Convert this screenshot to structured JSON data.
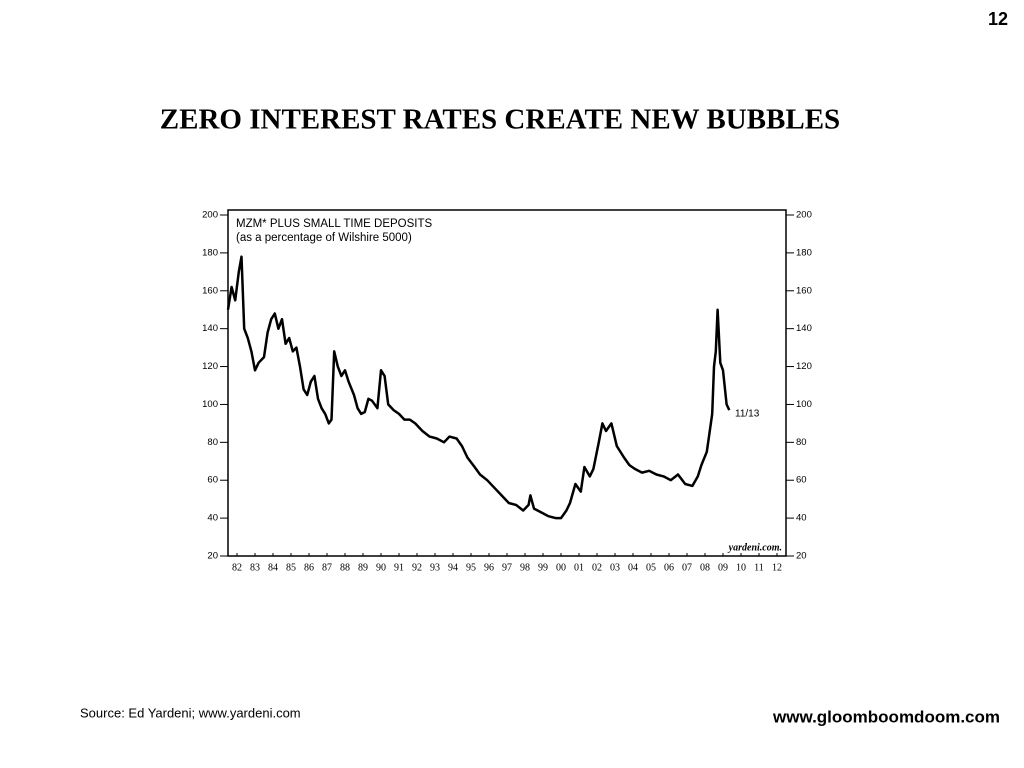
{
  "slide_number": "12",
  "title": "ZERO  INTEREST  RATES  CREATE  NEW  BUBBLES",
  "source": "Source: Ed Yardeni; www.yardeni.com",
  "website": "www.gloomboomdoom.com",
  "chart_data": {
    "type": "line",
    "title": "MZM* PLUS SMALL TIME DEPOSITS",
    "subtitle": "(as a percentage of Wilshire 5000)",
    "annotations": [
      "11/13",
      "yardeni.com."
    ],
    "color": "#000000",
    "x": [
      1982.0,
      1982.2,
      1982.4,
      1982.6,
      1982.75,
      1982.9,
      1983.1,
      1983.3,
      1983.5,
      1983.7,
      1984.0,
      1984.2,
      1984.4,
      1984.6,
      1984.8,
      1985.0,
      1985.2,
      1985.4,
      1985.6,
      1985.8,
      1986.0,
      1986.2,
      1986.4,
      1986.6,
      1986.8,
      1987.0,
      1987.2,
      1987.4,
      1987.6,
      1987.75,
      1987.9,
      1988.1,
      1988.3,
      1988.5,
      1988.7,
      1989.0,
      1989.2,
      1989.4,
      1989.6,
      1989.8,
      1990.0,
      1990.3,
      1990.5,
      1990.7,
      1990.9,
      1991.2,
      1991.5,
      1991.8,
      1992.1,
      1992.4,
      1992.8,
      1993.2,
      1993.6,
      1994.0,
      1994.3,
      1994.7,
      1995.0,
      1995.3,
      1995.7,
      1996.0,
      1996.4,
      1996.8,
      1997.2,
      1997.6,
      1998.0,
      1998.4,
      1998.7,
      1998.8,
      1999.0,
      1999.4,
      1999.8,
      2000.2,
      2000.5,
      2000.8,
      2001.0,
      2001.3,
      2001.6,
      2001.8,
      2002.1,
      2002.3,
      2002.6,
      2002.8,
      2003.0,
      2003.3,
      2003.6,
      2004.0,
      2004.3,
      2004.6,
      2005.0,
      2005.4,
      2005.8,
      2006.2,
      2006.6,
      2007.0,
      2007.4,
      2007.8,
      2008.1,
      2008.3,
      2008.6,
      2008.9,
      2009.0,
      2009.1,
      2009.2,
      2009.35,
      2009.5,
      2009.7,
      2009.85
    ],
    "values": [
      150,
      162,
      155,
      170,
      178,
      140,
      135,
      128,
      118,
      122,
      125,
      138,
      145,
      148,
      140,
      145,
      132,
      135,
      128,
      130,
      120,
      108,
      105,
      112,
      115,
      103,
      98,
      95,
      90,
      92,
      128,
      120,
      115,
      118,
      112,
      105,
      98,
      95,
      96,
      103,
      102,
      98,
      118,
      115,
      100,
      97,
      95,
      92,
      92,
      90,
      86,
      83,
      82,
      80,
      83,
      82,
      78,
      72,
      67,
      63,
      60,
      56,
      52,
      48,
      47,
      44,
      47,
      52,
      45,
      43,
      41,
      40,
      40,
      44,
      48,
      58,
      54,
      67,
      62,
      66,
      80,
      90,
      86,
      90,
      78,
      72,
      68,
      66,
      64,
      65,
      63,
      62,
      60,
      63,
      58,
      57,
      62,
      68,
      75,
      95,
      120,
      128,
      150,
      122,
      118,
      100,
      97
    ],
    "xlim": [
      1982,
      2013
    ],
    "xticks": [
      {
        "value": 1982.5,
        "label": "82"
      },
      {
        "value": 1983.5,
        "label": "83"
      },
      {
        "value": 1984.5,
        "label": "84"
      },
      {
        "value": 1985.5,
        "label": "85"
      },
      {
        "value": 1986.5,
        "label": "86"
      },
      {
        "value": 1987.5,
        "label": "87"
      },
      {
        "value": 1988.5,
        "label": "88"
      },
      {
        "value": 1989.5,
        "label": "89"
      },
      {
        "value": 1990.5,
        "label": "90"
      },
      {
        "value": 1991.5,
        "label": "91"
      },
      {
        "value": 1992.5,
        "label": "92"
      },
      {
        "value": 1993.5,
        "label": "93"
      },
      {
        "value": 1994.5,
        "label": "94"
      },
      {
        "value": 1995.5,
        "label": "95"
      },
      {
        "value": 1996.5,
        "label": "96"
      },
      {
        "value": 1997.5,
        "label": "97"
      },
      {
        "value": 1998.5,
        "label": "98"
      },
      {
        "value": 1999.5,
        "label": "99"
      },
      {
        "value": 2000.5,
        "label": "00"
      },
      {
        "value": 2001.5,
        "label": "01"
      },
      {
        "value": 2002.5,
        "label": "02"
      },
      {
        "value": 2003.5,
        "label": "03"
      },
      {
        "value": 2004.5,
        "label": "04"
      },
      {
        "value": 2005.5,
        "label": "05"
      },
      {
        "value": 2006.5,
        "label": "06"
      },
      {
        "value": 2007.5,
        "label": "07"
      },
      {
        "value": 2008.5,
        "label": "08"
      },
      {
        "value": 2009.5,
        "label": "09"
      },
      {
        "value": 2010.5,
        "label": "10"
      },
      {
        "value": 2011.5,
        "label": "11"
      },
      {
        "value": 2012.5,
        "label": "12"
      }
    ],
    "ylim": [
      20,
      200
    ],
    "yticks": [
      20,
      40,
      60,
      80,
      100,
      120,
      140,
      160,
      180,
      200
    ],
    "y2lim": [
      20,
      200
    ],
    "y2ticks": [
      20,
      40,
      60,
      80,
      100,
      120,
      140,
      160,
      180,
      200
    ],
    "grid": false
  }
}
